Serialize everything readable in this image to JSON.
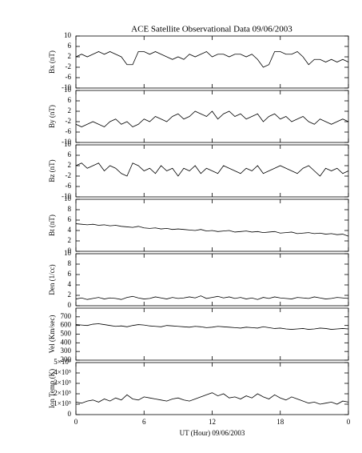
{
  "chart_data": [
    {
      "type": "line",
      "title": "ACE Satellite Observational Data   09/06/2003",
      "ylabel": "Bx (nT)",
      "color": "#000000",
      "x": [
        0,
        0.5,
        1,
        1.5,
        2,
        2.5,
        3,
        3.5,
        4,
        4.5,
        5,
        5.5,
        6,
        6.5,
        7,
        7.5,
        8,
        8.5,
        9,
        9.5,
        10,
        10.5,
        11,
        11.5,
        12,
        12.5,
        13,
        13.5,
        14,
        14.5,
        15,
        15.5,
        16,
        16.5,
        17,
        17.5,
        18,
        18.5,
        19,
        19.5,
        20,
        20.5,
        21,
        21.5,
        22,
        22.5,
        23,
        23.5,
        24
      ],
      "values": [
        2,
        3,
        2,
        3,
        4,
        3,
        4,
        3,
        2,
        -1,
        -1,
        4,
        4,
        3,
        4,
        3,
        2,
        1,
        2,
        1,
        3,
        2,
        3,
        4,
        2,
        3,
        3,
        2,
        3,
        3,
        2,
        3,
        1,
        -2,
        -1,
        4,
        4,
        3,
        3,
        4,
        2,
        -1,
        1,
        1,
        0,
        1,
        0,
        1,
        0
      ],
      "xlim": [
        0,
        24
      ],
      "ylim": [
        -10,
        10
      ],
      "yticks": [
        -10,
        -6,
        -2,
        2,
        6,
        10
      ]
    },
    {
      "type": "line",
      "ylabel": "By (nT)",
      "color": "#000000",
      "x": [
        0,
        0.5,
        1,
        1.5,
        2,
        2.5,
        3,
        3.5,
        4,
        4.5,
        5,
        5.5,
        6,
        6.5,
        7,
        7.5,
        8,
        8.5,
        9,
        9.5,
        10,
        10.5,
        11,
        11.5,
        12,
        12.5,
        13,
        13.5,
        14,
        14.5,
        15,
        15.5,
        16,
        16.5,
        17,
        17.5,
        18,
        18.5,
        19,
        19.5,
        20,
        20.5,
        21,
        21.5,
        22,
        22.5,
        23,
        23.5,
        24
      ],
      "values": [
        -3,
        -4,
        -3,
        -2,
        -3,
        -4,
        -2,
        -1,
        -3,
        -2,
        -4,
        -3,
        -1,
        -2,
        0,
        -1,
        -2,
        0,
        1,
        -1,
        0,
        2,
        1,
        0,
        2,
        -1,
        1,
        2,
        0,
        1,
        -1,
        0,
        1,
        -2,
        0,
        1,
        -1,
        0,
        -2,
        -1,
        0,
        -2,
        -3,
        -1,
        -2,
        -3,
        -2,
        -1,
        -2
      ],
      "xlim": [
        0,
        24
      ],
      "ylim": [
        -10,
        10
      ],
      "yticks": [
        -10,
        -6,
        -2,
        2,
        6,
        10
      ]
    },
    {
      "type": "line",
      "ylabel": "Bz (nT)",
      "color": "#000000",
      "x": [
        0,
        0.5,
        1,
        1.5,
        2,
        2.5,
        3,
        3.5,
        4,
        4.5,
        5,
        5.5,
        6,
        6.5,
        7,
        7.5,
        8,
        8.5,
        9,
        9.5,
        10,
        10.5,
        11,
        11.5,
        12,
        12.5,
        13,
        13.5,
        14,
        14.5,
        15,
        15.5,
        16,
        16.5,
        17,
        17.5,
        18,
        18.5,
        19,
        19.5,
        20,
        20.5,
        21,
        21.5,
        22,
        22.5,
        23,
        23.5,
        24
      ],
      "values": [
        2,
        3,
        1,
        2,
        3,
        0,
        2,
        1,
        -1,
        -2,
        3,
        2,
        0,
        1,
        -1,
        2,
        0,
        1,
        -2,
        1,
        0,
        2,
        -1,
        1,
        0,
        -1,
        2,
        1,
        0,
        -1,
        1,
        0,
        2,
        -1,
        0,
        1,
        2,
        1,
        0,
        -1,
        1,
        2,
        0,
        -2,
        1,
        0,
        1,
        -1,
        0
      ],
      "xlim": [
        0,
        24
      ],
      "ylim": [
        -10,
        10
      ],
      "yticks": [
        -10,
        -6,
        -2,
        2,
        6,
        10
      ]
    },
    {
      "type": "line",
      "ylabel": "Bt (nT)",
      "color": "#000000",
      "x": [
        0,
        0.5,
        1,
        1.5,
        2,
        2.5,
        3,
        3.5,
        4,
        4.5,
        5,
        5.5,
        6,
        6.5,
        7,
        7.5,
        8,
        8.5,
        9,
        9.5,
        10,
        10.5,
        11,
        11.5,
        12,
        12.5,
        13,
        13.5,
        14,
        14.5,
        15,
        15.5,
        16,
        16.5,
        17,
        17.5,
        18,
        18.5,
        19,
        19.5,
        20,
        20.5,
        21,
        21.5,
        22,
        22.5,
        23,
        23.5,
        24
      ],
      "values": [
        5.3,
        5.2,
        5.1,
        5.2,
        5,
        5.1,
        4.9,
        5,
        4.8,
        4.7,
        4.6,
        4.8,
        4.5,
        4.4,
        4.5,
        4.3,
        4.4,
        4.2,
        4.3,
        4.2,
        4.1,
        4,
        4.2,
        3.9,
        4,
        3.8,
        3.9,
        4,
        3.7,
        3.8,
        3.9,
        3.7,
        3.8,
        3.6,
        3.7,
        3.8,
        3.5,
        3.6,
        3.7,
        3.4,
        3.5,
        3.6,
        3.4,
        3.5,
        3.3,
        3.4,
        3.2,
        3.3,
        2.9
      ],
      "xlim": [
        0,
        24
      ],
      "ylim": [
        0,
        10
      ],
      "yticks": [
        0,
        2,
        4,
        6,
        8,
        10
      ]
    },
    {
      "type": "line",
      "ylabel": "Den (1/cc)",
      "color": "#000000",
      "x": [
        0,
        0.5,
        1,
        1.5,
        2,
        2.5,
        3,
        3.5,
        4,
        4.5,
        5,
        5.5,
        6,
        6.5,
        7,
        7.5,
        8,
        8.5,
        9,
        9.5,
        10,
        10.5,
        11,
        11.5,
        12,
        12.5,
        13,
        13.5,
        14,
        14.5,
        15,
        15.5,
        16,
        16.5,
        17,
        17.5,
        18,
        18.5,
        19,
        19.5,
        20,
        20.5,
        21,
        21.5,
        22,
        22.5,
        23,
        23.5,
        24
      ],
      "values": [
        1.3,
        1.5,
        1.2,
        1.4,
        1.6,
        1.3,
        1.5,
        1.4,
        1.2,
        1.6,
        1.8,
        1.5,
        1.3,
        1.4,
        1.7,
        1.5,
        1.3,
        1.6,
        1.4,
        1.5,
        1.7,
        1.5,
        1.9,
        1.4,
        1.6,
        1.8,
        1.5,
        1.7,
        1.4,
        1.6,
        1.3,
        1.5,
        1.2,
        1.6,
        1.4,
        1.7,
        1.5,
        1.4,
        1.3,
        1.6,
        1.5,
        1.4,
        1.7,
        1.5,
        1.3,
        1.4,
        1.6,
        1.5,
        1.4
      ],
      "xlim": [
        0,
        24
      ],
      "ylim": [
        0,
        10
      ],
      "yticks": [
        0,
        2,
        4,
        6,
        8,
        10
      ]
    },
    {
      "type": "line",
      "ylabel": "Vel (Km/sec)",
      "color": "#000000",
      "x": [
        0,
        0.5,
        1,
        1.5,
        2,
        2.5,
        3,
        3.5,
        4,
        4.5,
        5,
        5.5,
        6,
        6.5,
        7,
        7.5,
        8,
        8.5,
        9,
        9.5,
        10,
        10.5,
        11,
        11.5,
        12,
        12.5,
        13,
        13.5,
        14,
        14.5,
        15,
        15.5,
        16,
        16.5,
        17,
        17.5,
        18,
        18.5,
        19,
        19.5,
        20,
        20.5,
        21,
        21.5,
        22,
        22.5,
        23,
        23.5,
        24
      ],
      "values": [
        610,
        605,
        600,
        615,
        620,
        610,
        600,
        590,
        595,
        585,
        600,
        610,
        605,
        595,
        590,
        585,
        600,
        595,
        590,
        585,
        580,
        590,
        585,
        575,
        580,
        590,
        585,
        580,
        575,
        570,
        580,
        575,
        570,
        585,
        575,
        565,
        570,
        560,
        555,
        560,
        565,
        555,
        560,
        570,
        565,
        555,
        560,
        565,
        560
      ],
      "xlim": [
        0,
        24
      ],
      "ylim": [
        200,
        800
      ],
      "yticks": [
        200,
        300,
        400,
        500,
        600,
        700
      ]
    },
    {
      "type": "line",
      "ylabel": "Ion Temp (K)",
      "xlabel": "UT (Hour)   09/06/2003",
      "color": "#000000",
      "x": [
        0,
        0.5,
        1,
        1.5,
        2,
        2.5,
        3,
        3.5,
        4,
        4.5,
        5,
        5.5,
        6,
        6.5,
        7,
        7.5,
        8,
        8.5,
        9,
        9.5,
        10,
        10.5,
        11,
        11.5,
        12,
        12.5,
        13,
        13.5,
        14,
        14.5,
        15,
        15.5,
        16,
        16.5,
        17,
        17.5,
        18,
        18.5,
        19,
        19.5,
        20,
        20.5,
        21,
        21.5,
        22,
        22.5,
        23,
        23.5,
        24
      ],
      "values": [
        120000,
        110000,
        130000,
        140000,
        120000,
        150000,
        130000,
        160000,
        140000,
        190000,
        150000,
        140000,
        170000,
        160000,
        150000,
        140000,
        130000,
        150000,
        160000,
        140000,
        130000,
        150000,
        170000,
        190000,
        210000,
        180000,
        200000,
        160000,
        170000,
        150000,
        180000,
        160000,
        200000,
        170000,
        150000,
        190000,
        160000,
        140000,
        170000,
        150000,
        130000,
        110000,
        120000,
        100000,
        110000,
        120000,
        100000,
        130000,
        120000
      ],
      "xlim": [
        0,
        24
      ],
      "ylim": [
        0,
        500000
      ],
      "yticks": [
        0,
        {
          "value": 100000,
          "label": "1×10⁵"
        },
        {
          "value": 200000,
          "label": "2×10⁵"
        },
        {
          "value": 300000,
          "label": "3×10⁵"
        },
        {
          "value": 400000,
          "label": "4×10⁵"
        },
        {
          "value": 500000,
          "label": "5×10⁵"
        }
      ],
      "xticks": [
        {
          "value": 0,
          "label": "0"
        },
        6,
        12,
        18,
        {
          "value": 24,
          "label": "0"
        }
      ]
    }
  ]
}
